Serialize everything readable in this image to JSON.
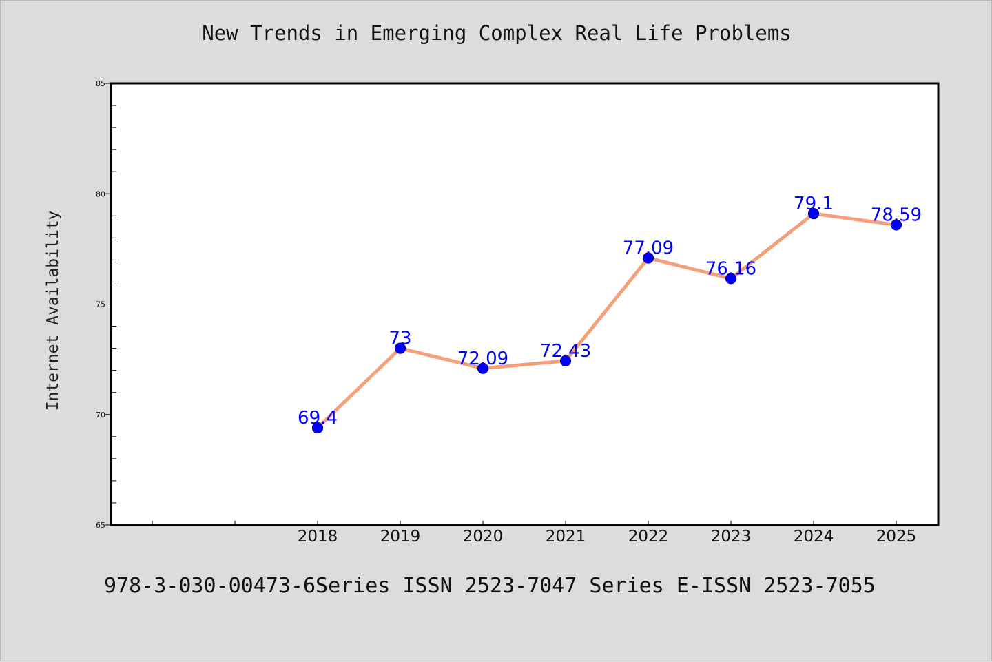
{
  "chart_data": {
    "type": "line",
    "title": "New Trends in Emerging Complex Real Life Problems",
    "xlabel": "",
    "ylabel": "Internet Availability",
    "categories": [
      "2018",
      "2019",
      "2020",
      "2021",
      "2022",
      "2023",
      "2024",
      "2025"
    ],
    "series": [
      {
        "values": [
          69.4,
          73,
          72.09,
          72.43,
          77.09,
          76.16,
          79.1,
          78.59
        ],
        "data_labels": [
          "69.4",
          "73",
          "72.09",
          "72.43",
          "77.09",
          "76.16",
          "79.1",
          "78.59"
        ]
      }
    ],
    "x_slots": 10,
    "ylim": [
      65,
      85
    ],
    "yticks": [
      "65",
      "70",
      "75",
      "80",
      "85"
    ],
    "grid": false,
    "legend": "none",
    "colors": {
      "line": "#f4a07a",
      "marker": "#0000ff",
      "marker_edge": "#00008b",
      "data_label": "#0000ff",
      "background": "#dcdcdc",
      "plot_background": "#ffffff",
      "axes": "#000000"
    }
  },
  "footer": {
    "text": "978-3-030-00473-6Series ISSN 2523-7047 Series E-ISSN 2523-7055"
  }
}
